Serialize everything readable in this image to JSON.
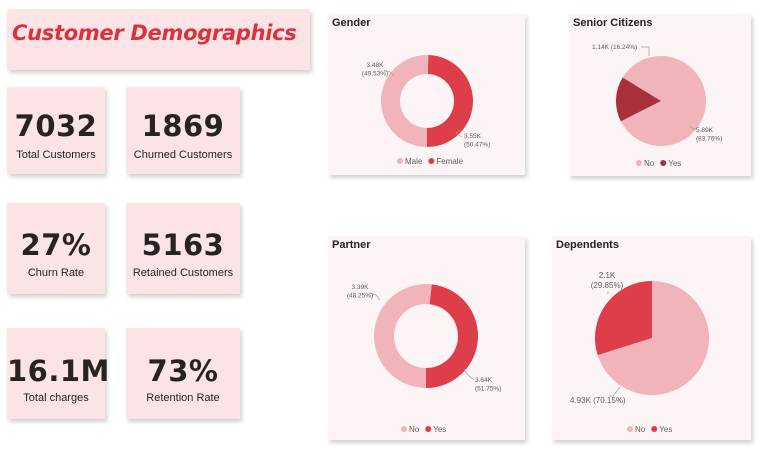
{
  "title": "Customer Demographics",
  "kpis": [
    {
      "value": "7032",
      "label": "Total Customers"
    },
    {
      "value": "1869",
      "label": "Churned Customers"
    },
    {
      "value": "27%",
      "label": "Churn Rate"
    },
    {
      "value": "5163",
      "label": "Retained Customers"
    },
    {
      "value": "16.1M",
      "label": "Total charges"
    },
    {
      "value": "73%",
      "label": "Retention Rate"
    }
  ],
  "colors": {
    "light": "#f0b4ba",
    "dark": "#dd3e4a",
    "darker": "#a8303d"
  },
  "chart_data": [
    {
      "type": "pie",
      "style": "donut",
      "title": "Gender",
      "labels": [
        "Male",
        "Female"
      ],
      "values": [
        3.55,
        3.48
      ],
      "data_labels": [
        [
          "3.55K",
          "(50.47%)"
        ],
        [
          "3.48K",
          "(49.53%)"
        ]
      ],
      "legend": [
        "Male",
        "Female"
      ],
      "colors": [
        "#f0b4ba",
        "#dd3e4a"
      ]
    },
    {
      "type": "pie",
      "title": "Senior Citizens",
      "labels": [
        "No",
        "Yes"
      ],
      "values": [
        5.89,
        1.14
      ],
      "data_labels": [
        [
          "5.89K",
          "(83.76%)"
        ],
        [
          "1.14K (16.24%)"
        ]
      ],
      "legend": [
        "No",
        "Yes"
      ],
      "colors": [
        "#f0b4ba",
        "#a8303d"
      ]
    },
    {
      "type": "pie",
      "style": "donut",
      "title": "Partner",
      "labels": [
        "No",
        "Yes"
      ],
      "values": [
        3.64,
        3.39
      ],
      "data_labels": [
        [
          "3.64K",
          "(51.75%)"
        ],
        [
          "3.39K",
          "(48.25%)"
        ]
      ],
      "legend": [
        "No",
        "Yes"
      ],
      "colors": [
        "#f0b4ba",
        "#dd3e4a"
      ]
    },
    {
      "type": "pie",
      "title": "Dependents",
      "labels": [
        "No",
        "Yes"
      ],
      "values": [
        4.93,
        2.1
      ],
      "data_labels": [
        [
          "4.93K (70.15%)"
        ],
        [
          "2.1K",
          "(29.85%)"
        ]
      ],
      "legend": [
        "No",
        "Yes"
      ],
      "colors": [
        "#f0b4ba",
        "#dd3e4a"
      ]
    }
  ]
}
